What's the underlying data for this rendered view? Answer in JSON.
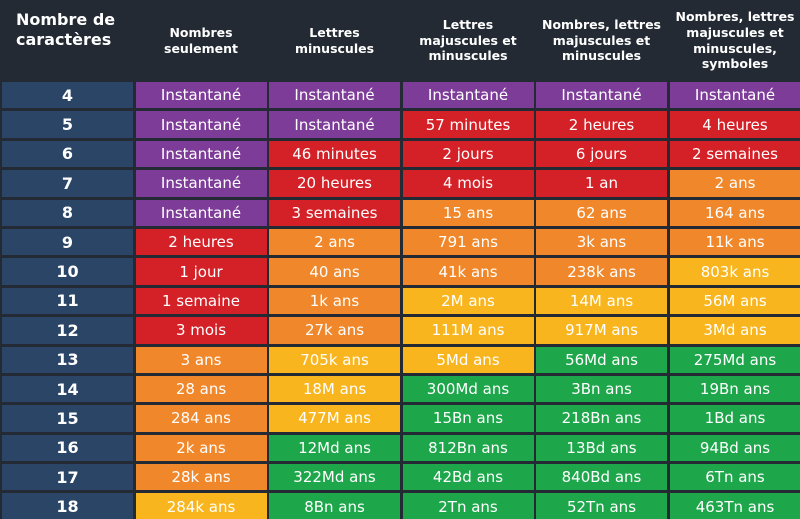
{
  "table": {
    "header": [
      "Nombre de caractères",
      "Nombres seulement",
      "Lettres minuscules",
      "Lettres majuscules et minuscules",
      "Nombres, lettres majuscules et minuscules",
      "Nombres, lettres majuscules et minuscules, symboles"
    ],
    "rows": [
      {
        "length": "4",
        "cells": [
          {
            "text": "Instantané",
            "color": "#7d3c98"
          },
          {
            "text": "Instantané",
            "color": "#7d3c98"
          },
          {
            "text": "Instantané",
            "color": "#7d3c98"
          },
          {
            "text": "Instantané",
            "color": "#7d3c98"
          },
          {
            "text": "Instantané",
            "color": "#7d3c98"
          }
        ]
      },
      {
        "length": "5",
        "cells": [
          {
            "text": "Instantané",
            "color": "#7d3c98"
          },
          {
            "text": "Instantané",
            "color": "#7d3c98"
          },
          {
            "text": "57 minutes",
            "color": "#d42027"
          },
          {
            "text": "2 heures",
            "color": "#d42027"
          },
          {
            "text": "4 heures",
            "color": "#d42027"
          }
        ]
      },
      {
        "length": "6",
        "cells": [
          {
            "text": "Instantané",
            "color": "#7d3c98"
          },
          {
            "text": "46 minutes",
            "color": "#d42027"
          },
          {
            "text": "2 jours",
            "color": "#d42027"
          },
          {
            "text": "6 jours",
            "color": "#d42027"
          },
          {
            "text": "2 semaines",
            "color": "#d42027"
          }
        ]
      },
      {
        "length": "7",
        "cells": [
          {
            "text": "Instantané",
            "color": "#7d3c98"
          },
          {
            "text": "20 heures",
            "color": "#d42027"
          },
          {
            "text": "4 mois",
            "color": "#d42027"
          },
          {
            "text": "1 an",
            "color": "#d42027"
          },
          {
            "text": "2 ans",
            "color": "#f0872a"
          }
        ]
      },
      {
        "length": "8",
        "cells": [
          {
            "text": "Instantané",
            "color": "#7d3c98"
          },
          {
            "text": "3 semaines",
            "color": "#d42027"
          },
          {
            "text": "15 ans",
            "color": "#f0872a"
          },
          {
            "text": "62 ans",
            "color": "#f0872a"
          },
          {
            "text": "164 ans",
            "color": "#f0872a"
          }
        ]
      },
      {
        "length": "9",
        "cells": [
          {
            "text": "2 heures",
            "color": "#d42027"
          },
          {
            "text": "2 ans",
            "color": "#f0872a"
          },
          {
            "text": "791 ans",
            "color": "#f0872a"
          },
          {
            "text": "3k ans",
            "color": "#f0872a"
          },
          {
            "text": "11k ans",
            "color": "#f0872a"
          }
        ]
      },
      {
        "length": "10",
        "cells": [
          {
            "text": "1 jour",
            "color": "#d42027"
          },
          {
            "text": "40 ans",
            "color": "#f0872a"
          },
          {
            "text": "41k ans",
            "color": "#f0872a"
          },
          {
            "text": "238k ans",
            "color": "#f0872a"
          },
          {
            "text": "803k ans",
            "color": "#f8b51e"
          }
        ]
      },
      {
        "length": "11",
        "cells": [
          {
            "text": "1 semaine",
            "color": "#d42027"
          },
          {
            "text": "1k ans",
            "color": "#f0872a"
          },
          {
            "text": "2M ans",
            "color": "#f8b51e"
          },
          {
            "text": "14M ans",
            "color": "#f8b51e"
          },
          {
            "text": "56M ans",
            "color": "#f8b51e"
          }
        ]
      },
      {
        "length": "12",
        "cells": [
          {
            "text": "3 mois",
            "color": "#d42027"
          },
          {
            "text": "27k ans",
            "color": "#f0872a"
          },
          {
            "text": "111M ans",
            "color": "#f8b51e"
          },
          {
            "text": "917M ans",
            "color": "#f8b51e"
          },
          {
            "text": "3Md ans",
            "color": "#f8b51e"
          }
        ]
      },
      {
        "length": "13",
        "cells": [
          {
            "text": "3 ans",
            "color": "#f0872a"
          },
          {
            "text": "705k ans",
            "color": "#f8b51e"
          },
          {
            "text": "5Md ans",
            "color": "#f8b51e"
          },
          {
            "text": "56Md ans",
            "color": "#1ea64b"
          },
          {
            "text": "275Md ans",
            "color": "#1ea64b"
          }
        ]
      },
      {
        "length": "14",
        "cells": [
          {
            "text": "28 ans",
            "color": "#f0872a"
          },
          {
            "text": "18M ans",
            "color": "#f8b51e"
          },
          {
            "text": "300Md ans",
            "color": "#1ea64b"
          },
          {
            "text": "3Bn ans",
            "color": "#1ea64b"
          },
          {
            "text": "19Bn ans",
            "color": "#1ea64b"
          }
        ]
      },
      {
        "length": "15",
        "cells": [
          {
            "text": "284 ans",
            "color": "#f0872a"
          },
          {
            "text": "477M ans",
            "color": "#f8b51e"
          },
          {
            "text": "15Bn ans",
            "color": "#1ea64b"
          },
          {
            "text": "218Bn ans",
            "color": "#1ea64b"
          },
          {
            "text": "1Bd ans",
            "color": "#1ea64b"
          }
        ]
      },
      {
        "length": "16",
        "cells": [
          {
            "text": "2k ans",
            "color": "#f0872a"
          },
          {
            "text": "12Md ans",
            "color": "#1ea64b"
          },
          {
            "text": "812Bn ans",
            "color": "#1ea64b"
          },
          {
            "text": "13Bd ans",
            "color": "#1ea64b"
          },
          {
            "text": "94Bd ans",
            "color": "#1ea64b"
          }
        ]
      },
      {
        "length": "17",
        "cells": [
          {
            "text": "28k ans",
            "color": "#f0872a"
          },
          {
            "text": "322Md ans",
            "color": "#1ea64b"
          },
          {
            "text": "42Bd ans",
            "color": "#1ea64b"
          },
          {
            "text": "840Bd ans",
            "color": "#1ea64b"
          },
          {
            "text": "6Tn ans",
            "color": "#1ea64b"
          }
        ]
      },
      {
        "length": "18",
        "cells": [
          {
            "text": "284k ans",
            "color": "#f8b51e"
          },
          {
            "text": "8Bn ans",
            "color": "#1ea64b"
          },
          {
            "text": "2Tn ans",
            "color": "#1ea64b"
          },
          {
            "text": "52Tn ans",
            "color": "#1ea64b"
          },
          {
            "text": "463Tn ans",
            "color": "#1ea64b"
          }
        ]
      }
    ]
  }
}
